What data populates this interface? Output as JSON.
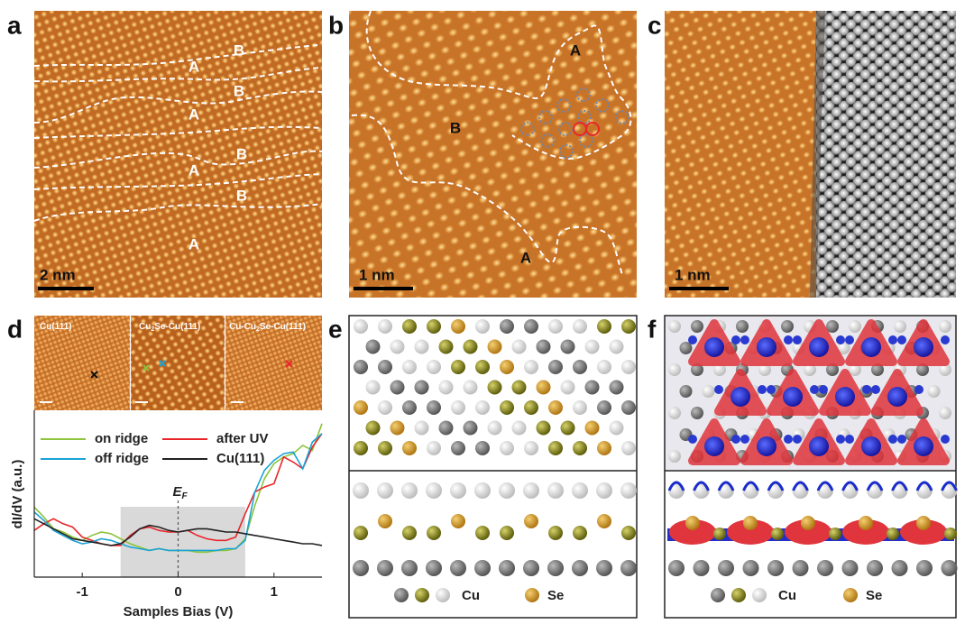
{
  "panels": {
    "a": {
      "label": "a",
      "scale_bar": "2 nm",
      "regions": [
        "B",
        "A",
        "B",
        "A",
        "B",
        "A",
        "B",
        "A"
      ]
    },
    "b": {
      "label": "b",
      "scale_bar": "1 nm",
      "regions": [
        "A",
        "B",
        "A"
      ]
    },
    "c": {
      "label": "c",
      "scale_bar": "1 nm"
    },
    "d": {
      "label": "d",
      "insets": [
        {
          "parts": [
            "Cu(111)"
          ]
        },
        {
          "parts": [
            "Cu",
            "2",
            "Se-Cu(111)"
          ]
        },
        {
          "parts": [
            "Cu-Cu",
            "2",
            "Se-Cu(111)"
          ]
        }
      ]
    },
    "e": {
      "label": "e",
      "legend": [
        "Cu",
        "Se"
      ]
    },
    "f": {
      "label": "f",
      "legend": [
        "Cu",
        "Se"
      ]
    }
  },
  "chart_data": {
    "type": "line",
    "x_label": "Samples Bias (V)",
    "y_label": "dI/dV (a.u.)",
    "annotation": {
      "symbol": "E",
      "subscript": "F"
    },
    "ef_line": 0,
    "highlight": [
      -0.6,
      0.7
    ],
    "xlim": [
      -1.5,
      1.5
    ],
    "xticks": [
      -1,
      0,
      1
    ],
    "ylim": [
      0,
      10
    ],
    "x": [
      -1.5,
      -1.4,
      -1.3,
      -1.2,
      -1.1,
      -1.0,
      -0.9,
      -0.8,
      -0.7,
      -0.6,
      -0.5,
      -0.4,
      -0.3,
      -0.2,
      -0.1,
      0,
      0.1,
      0.2,
      0.3,
      0.4,
      0.5,
      0.6,
      0.7,
      0.8,
      0.9,
      1.0,
      1.1,
      1.2,
      1.3,
      1.4,
      1.5
    ],
    "series": [
      {
        "name": "on ridge",
        "color": "#8cc43c",
        "values": [
          4.2,
          3.6,
          2.9,
          2.7,
          2.4,
          2.2,
          2.5,
          2.7,
          2.6,
          2.3,
          2.0,
          1.8,
          1.6,
          1.7,
          1.6,
          1.6,
          1.6,
          1.5,
          1.5,
          1.6,
          1.6,
          1.7,
          2.3,
          4.3,
          5.9,
          6.8,
          7.2,
          7.4,
          7.9,
          7.6,
          9.2
        ]
      },
      {
        "name": "after UV",
        "color": "#e8262a",
        "values": [
          2.8,
          3.2,
          3.5,
          3.2,
          3.0,
          2.4,
          2.2,
          2.0,
          1.9,
          1.9,
          2.5,
          2.9,
          3.0,
          2.8,
          2.7,
          2.7,
          2.8,
          2.5,
          2.3,
          2.2,
          2.2,
          2.4,
          3.8,
          5.1,
          5.4,
          5.6,
          7.2,
          6.9,
          6.5,
          7.8,
          8.6
        ]
      },
      {
        "name": "off ridge",
        "color": "#1ba3d6",
        "values": [
          3.9,
          3.4,
          2.8,
          2.5,
          2.2,
          2.0,
          2.1,
          2.3,
          2.2,
          2.0,
          1.8,
          1.7,
          1.6,
          1.7,
          1.6,
          1.6,
          1.6,
          1.6,
          1.6,
          1.6,
          1.7,
          1.7,
          2.2,
          5.1,
          6.4,
          7.0,
          7.4,
          7.5,
          6.5,
          8.1,
          8.6
        ]
      },
      {
        "name": "Cu(111)",
        "color": "#222222",
        "values": [
          3.5,
          3.2,
          2.9,
          2.6,
          2.3,
          2.2,
          2.1,
          2.0,
          1.9,
          2.0,
          2.4,
          2.9,
          3.1,
          3.0,
          2.8,
          2.7,
          2.8,
          2.9,
          2.9,
          2.8,
          2.7,
          2.7,
          2.6,
          2.5,
          2.4,
          2.3,
          2.2,
          2.1,
          2.0,
          2.0,
          1.9
        ]
      }
    ]
  }
}
